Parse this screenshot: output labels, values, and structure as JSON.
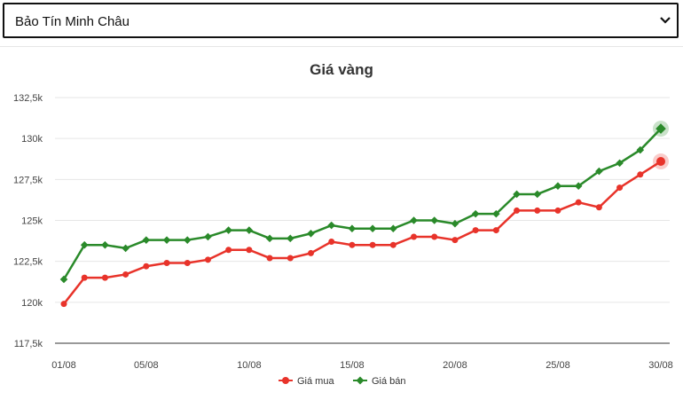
{
  "selector": {
    "selected": "Bảo Tín Minh Châu"
  },
  "chart_data": {
    "type": "line",
    "title": "Giá vàng",
    "xlabel": "",
    "ylabel": "",
    "ylim": [
      117.5,
      132.5
    ],
    "y_ticks": [
      117.5,
      120,
      122.5,
      125,
      127.5,
      130,
      132.5
    ],
    "y_tick_labels": [
      "117,5k",
      "120k",
      "122,5k",
      "125k",
      "127,5k",
      "130k",
      "132,5k"
    ],
    "x": [
      "01/08",
      "02/08",
      "03/08",
      "04/08",
      "05/08",
      "06/08",
      "07/08",
      "08/08",
      "09/08",
      "10/08",
      "11/08",
      "12/08",
      "13/08",
      "14/08",
      "15/08",
      "16/08",
      "17/08",
      "18/08",
      "19/08",
      "20/08",
      "21/08",
      "22/08",
      "23/08",
      "24/08",
      "25/08",
      "26/08",
      "27/08",
      "28/08",
      "29/08",
      "30/08"
    ],
    "x_tick_labels": [
      "01/08",
      "05/08",
      "10/08",
      "15/08",
      "20/08",
      "25/08",
      "30/08"
    ],
    "grid": "horizontal",
    "legend_position": "bottom",
    "series": [
      {
        "name": "Giá mua",
        "color": "#e8332a",
        "marker": "circle",
        "values": [
          119.9,
          121.5,
          121.5,
          121.7,
          122.2,
          122.4,
          122.4,
          122.6,
          123.2,
          123.2,
          122.7,
          122.7,
          123.0,
          123.7,
          123.5,
          123.5,
          123.5,
          124.0,
          124.0,
          123.8,
          124.4,
          124.4,
          125.6,
          125.6,
          125.6,
          126.1,
          125.8,
          127.0,
          127.8,
          128.6
        ]
      },
      {
        "name": "Giá bán",
        "color": "#2a8a2a",
        "marker": "diamond",
        "values": [
          121.4,
          123.5,
          123.5,
          123.3,
          123.8,
          123.8,
          123.8,
          124.0,
          124.4,
          124.4,
          123.9,
          123.9,
          124.2,
          124.7,
          124.5,
          124.5,
          124.5,
          125.0,
          125.0,
          124.8,
          125.4,
          125.4,
          126.6,
          126.6,
          127.1,
          127.1,
          128.0,
          128.5,
          129.3,
          130.6
        ]
      }
    ]
  }
}
